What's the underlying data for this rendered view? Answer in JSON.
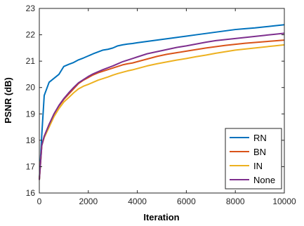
{
  "chart_data": {
    "type": "line",
    "title": "",
    "xlabel": "Iteration",
    "ylabel": "PSNR (dB)",
    "xlim": [
      0,
      10000
    ],
    "ylim": [
      16,
      23
    ],
    "xticks": [
      0,
      2000,
      4000,
      6000,
      8000,
      10000
    ],
    "yticks": [
      16,
      17,
      18,
      19,
      20,
      21,
      22,
      23
    ],
    "grid": false,
    "legend_position": "bottom-right",
    "series": [
      {
        "name": "RN",
        "color": "#0072BD",
        "x": [
          0,
          100,
          200,
          400,
          600,
          800,
          1000,
          1200,
          1400,
          1600,
          1800,
          2000,
          2200,
          2400,
          2600,
          2800,
          3000,
          3200,
          3400,
          3600,
          3800,
          4000,
          4400,
          4800,
          5200,
          5600,
          6000,
          6400,
          6800,
          7200,
          7600,
          8000,
          8400,
          8800,
          9200,
          9600,
          10000
        ],
        "y": [
          16.5,
          18.2,
          19.7,
          20.2,
          20.35,
          20.5,
          20.8,
          20.88,
          20.95,
          21.05,
          21.12,
          21.2,
          21.28,
          21.35,
          21.42,
          21.45,
          21.5,
          21.58,
          21.62,
          21.65,
          21.67,
          21.7,
          21.75,
          21.8,
          21.85,
          21.9,
          21.95,
          22.0,
          22.05,
          22.1,
          22.15,
          22.2,
          22.23,
          22.26,
          22.3,
          22.34,
          22.38
        ]
      },
      {
        "name": "BN",
        "color": "#D95319",
        "x": [
          0,
          100,
          200,
          400,
          600,
          800,
          1000,
          1200,
          1400,
          1600,
          1800,
          2000,
          2200,
          2400,
          2600,
          2800,
          3000,
          3200,
          3400,
          3600,
          3800,
          4000,
          4400,
          4800,
          5200,
          5600,
          6000,
          6400,
          6800,
          7200,
          7600,
          8000,
          8400,
          8800,
          9200,
          9600,
          10000
        ],
        "y": [
          16.5,
          17.8,
          18.15,
          18.6,
          19.0,
          19.3,
          19.55,
          19.75,
          19.95,
          20.15,
          20.28,
          20.38,
          20.48,
          20.56,
          20.62,
          20.68,
          20.74,
          20.8,
          20.86,
          20.9,
          20.93,
          20.98,
          21.08,
          21.18,
          21.26,
          21.32,
          21.38,
          21.44,
          21.5,
          21.55,
          21.6,
          21.64,
          21.68,
          21.71,
          21.74,
          21.77,
          21.8
        ]
      },
      {
        "name": "IN",
        "color": "#EDB120",
        "x": [
          0,
          100,
          200,
          400,
          600,
          800,
          1000,
          1200,
          1400,
          1600,
          1800,
          2000,
          2200,
          2400,
          2600,
          2800,
          3000,
          3200,
          3400,
          3600,
          3800,
          4000,
          4400,
          4800,
          5200,
          5600,
          6000,
          6400,
          6800,
          7200,
          7600,
          8000,
          8400,
          8800,
          9200,
          9600,
          10000
        ],
        "y": [
          16.5,
          17.8,
          18.1,
          18.5,
          18.9,
          19.2,
          19.45,
          19.62,
          19.8,
          19.95,
          20.05,
          20.12,
          20.2,
          20.28,
          20.34,
          20.4,
          20.47,
          20.53,
          20.58,
          20.63,
          20.67,
          20.72,
          20.82,
          20.9,
          20.97,
          21.04,
          21.1,
          21.17,
          21.23,
          21.3,
          21.36,
          21.42,
          21.46,
          21.5,
          21.54,
          21.58,
          21.62
        ]
      },
      {
        "name": "None",
        "color": "#7E2F8E",
        "x": [
          0,
          100,
          200,
          400,
          600,
          800,
          1000,
          1200,
          1400,
          1600,
          1800,
          2000,
          2200,
          2400,
          2600,
          2800,
          3000,
          3200,
          3400,
          3600,
          3800,
          4000,
          4400,
          4800,
          5200,
          5600,
          6000,
          6400,
          6800,
          7200,
          7600,
          8000,
          8400,
          8800,
          9200,
          9600,
          10000
        ],
        "y": [
          16.5,
          17.8,
          18.15,
          18.6,
          19.0,
          19.32,
          19.58,
          19.8,
          20.0,
          20.18,
          20.3,
          20.42,
          20.52,
          20.6,
          20.68,
          20.75,
          20.82,
          20.9,
          20.98,
          21.04,
          21.1,
          21.16,
          21.28,
          21.36,
          21.44,
          21.52,
          21.58,
          21.65,
          21.72,
          21.78,
          21.82,
          21.86,
          21.9,
          21.94,
          21.98,
          22.02,
          22.06
        ]
      }
    ]
  }
}
